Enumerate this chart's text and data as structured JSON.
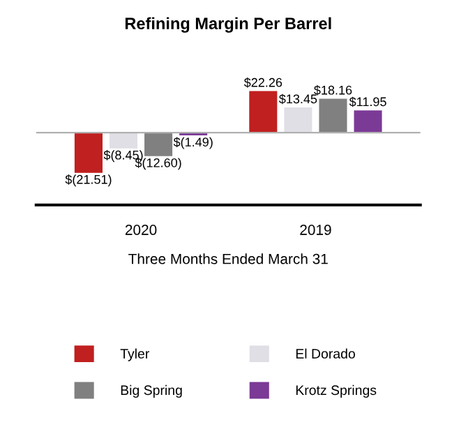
{
  "chart_data": {
    "type": "bar",
    "title": "Refining Margin Per Barrel",
    "xlabel": "Three Months Ended March 31",
    "categories": [
      "2020",
      "2019"
    ],
    "series": [
      {
        "name": "Tyler",
        "color": "#c0201f",
        "values": [
          -21.51,
          22.26
        ],
        "value_labels": [
          "$(21.51)",
          "$22.26"
        ]
      },
      {
        "name": "El Dorado",
        "color": "#e0dfe6",
        "values": [
          -8.45,
          13.45
        ],
        "value_labels": [
          "$(8.45)",
          "$13.45"
        ]
      },
      {
        "name": "Big Spring",
        "color": "#808080",
        "values": [
          -12.6,
          18.16
        ],
        "value_labels": [
          "$(12.60)",
          "$18.16"
        ]
      },
      {
        "name": "Krotz Springs",
        "color": "#7b3a96",
        "values": [
          -1.49,
          11.95
        ],
        "value_labels": [
          "$(1.49)",
          "$11.95"
        ]
      }
    ],
    "legend": "bottom",
    "grid": false
  }
}
